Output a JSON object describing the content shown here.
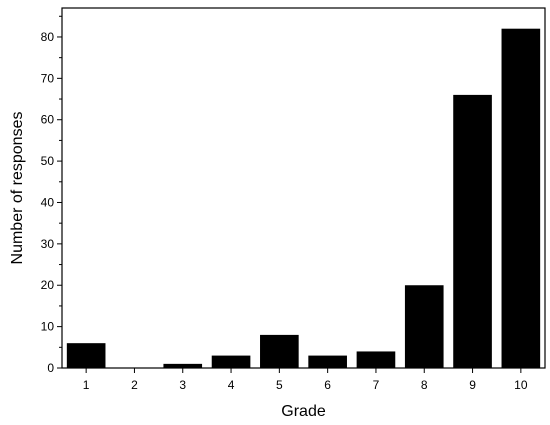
{
  "chart_data": {
    "type": "bar",
    "xlabel": "Grade",
    "ylabel": "Number of responses",
    "categories": [
      "1",
      "2",
      "3",
      "4",
      "5",
      "6",
      "7",
      "8",
      "9",
      "10"
    ],
    "values": [
      6,
      0,
      1,
      3,
      8,
      3,
      4,
      20,
      66,
      82
    ],
    "ylim": [
      0,
      87
    ],
    "yticks": [
      0,
      10,
      20,
      30,
      40,
      50,
      60,
      70,
      80
    ],
    "grid": false,
    "bar_color": "#000000"
  }
}
